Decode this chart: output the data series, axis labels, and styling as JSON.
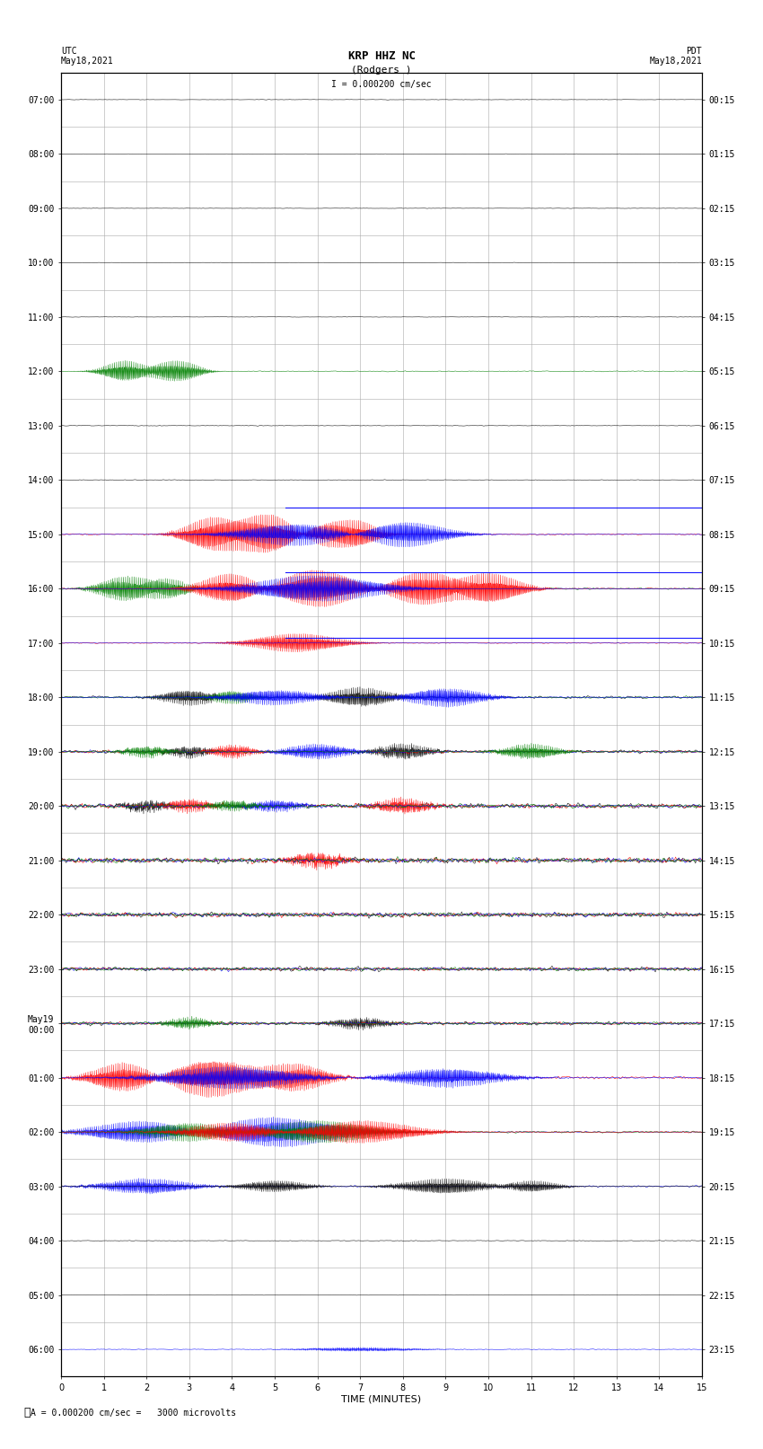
{
  "title_line1": "KRP HHZ NC",
  "title_line2": "(Rodgers )",
  "title_scale": "I = 0.000200 cm/sec",
  "top_left_label": "UTC\nMay18,2021",
  "top_right_label": "PDT\nMay18,2021",
  "utc_times": [
    "07:00",
    "08:00",
    "09:00",
    "10:00",
    "11:00",
    "12:00",
    "13:00",
    "14:00",
    "15:00",
    "16:00",
    "17:00",
    "18:00",
    "19:00",
    "20:00",
    "21:00",
    "22:00",
    "23:00",
    "May19\n00:00",
    "01:00",
    "02:00",
    "03:00",
    "04:00",
    "05:00",
    "06:00"
  ],
  "pdt_times": [
    "00:15",
    "01:15",
    "02:15",
    "03:15",
    "04:15",
    "05:15",
    "06:15",
    "07:15",
    "08:15",
    "09:15",
    "10:15",
    "11:15",
    "12:15",
    "13:15",
    "14:15",
    "15:15",
    "16:15",
    "17:15",
    "18:15",
    "19:15",
    "20:15",
    "21:15",
    "22:15",
    "23:15"
  ],
  "xlabel": "TIME (MINUTES)",
  "xmin": 0,
  "xmax": 15,
  "xticks": [
    0,
    1,
    2,
    3,
    4,
    5,
    6,
    7,
    8,
    9,
    10,
    11,
    12,
    13,
    14,
    15
  ],
  "n_rows": 24,
  "background_color": "#ffffff",
  "grid_color": "#aaaaaa",
  "scale_text": "A = 0.000200 cm/sec =   3000 microvolts",
  "colors": {
    "black": "#000000",
    "red": "#ff0000",
    "blue": "#0000ff",
    "green": "#008000"
  }
}
